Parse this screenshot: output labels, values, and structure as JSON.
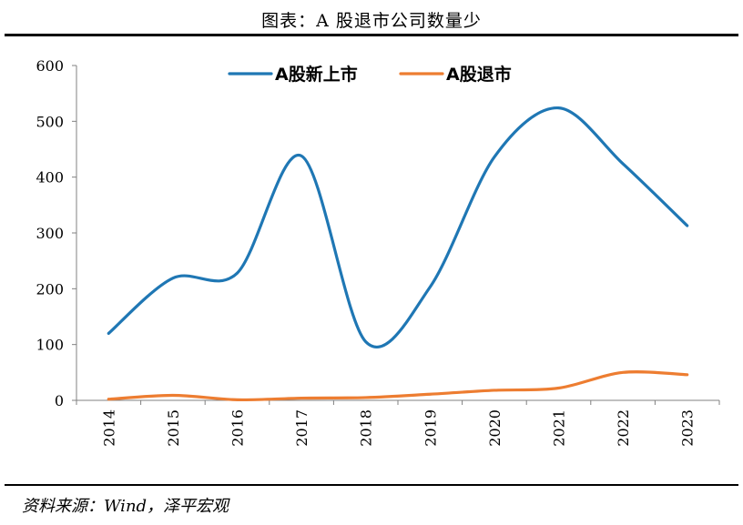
{
  "header": {
    "title": "图表：A 股退市公司数量少"
  },
  "footer": {
    "source": "资料来源：Wind，泽平宏观"
  },
  "chart_data": {
    "type": "line",
    "title": "",
    "xlabel": "",
    "ylabel": "",
    "categories": [
      "2014",
      "2015",
      "2016",
      "2017",
      "2018",
      "2019",
      "2020",
      "2021",
      "2022",
      "2023"
    ],
    "ylim": [
      0,
      600
    ],
    "yticks": [
      0,
      100,
      200,
      300,
      400,
      500,
      600
    ],
    "grid": false,
    "legend_position": "top",
    "series": [
      {
        "name": "A股新上市",
        "color": "#1F77B4",
        "values": [
          120,
          219,
          228,
          438,
          105,
          203,
          436,
          524,
          424,
          313
        ]
      },
      {
        "name": "A股退市",
        "color": "#ED7D31",
        "values": [
          2,
          9,
          1,
          4,
          5,
          11,
          18,
          22,
          50,
          46
        ]
      }
    ]
  }
}
